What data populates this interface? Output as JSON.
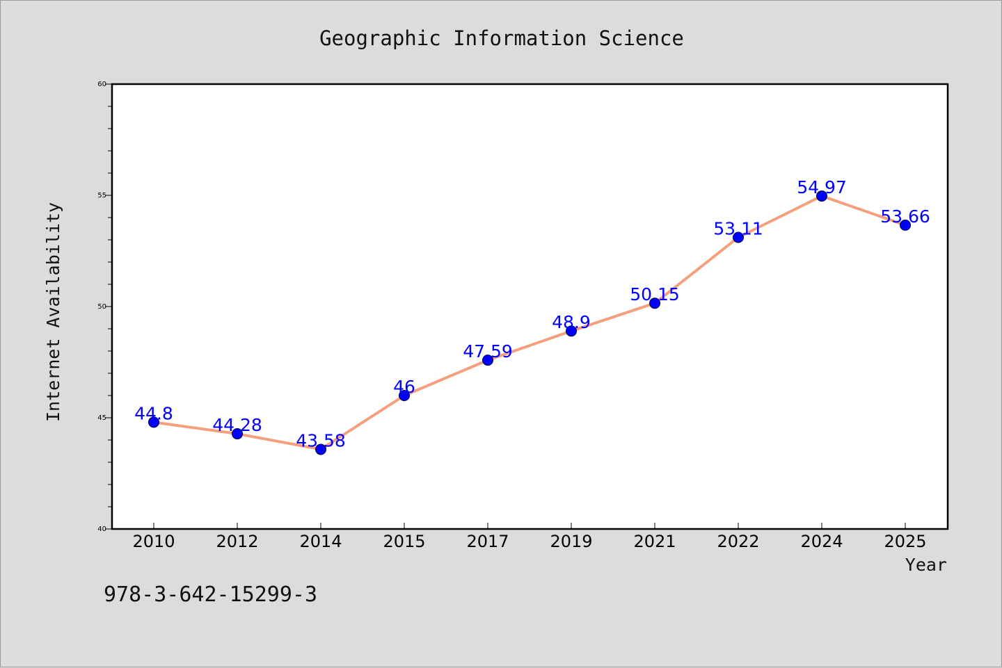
{
  "chart_data": {
    "type": "line",
    "title": "Geographic Information Science",
    "xlabel": "Year",
    "ylabel": "Internet Availability",
    "categories": [
      "2010",
      "2012",
      "2014",
      "2015",
      "2017",
      "2019",
      "2021",
      "2022",
      "2024",
      "2025"
    ],
    "series": [
      {
        "values": [
          44.8,
          44.28,
          43.58,
          46,
          47.59,
          48.9,
          50.15,
          53.11,
          54.97,
          53.66
        ],
        "labels": [
          "44.8",
          "44.28",
          "43.58",
          "46",
          "47.59",
          "48.9",
          "50.15",
          "53.11",
          "54.97",
          "53.66"
        ]
      }
    ],
    "ylim": [
      40,
      60
    ],
    "yticks": [
      "40",
      "45",
      "50",
      "55",
      "60"
    ],
    "grid": false,
    "legend": "none",
    "line_color": "#f4a07e",
    "marker_color": "#0000ff",
    "label_color": "#0000ff",
    "background_color": "#dcdcdc",
    "plot_background_color": "#ffffff"
  },
  "footer": {
    "isbn": "978-3-642-15299-3"
  }
}
